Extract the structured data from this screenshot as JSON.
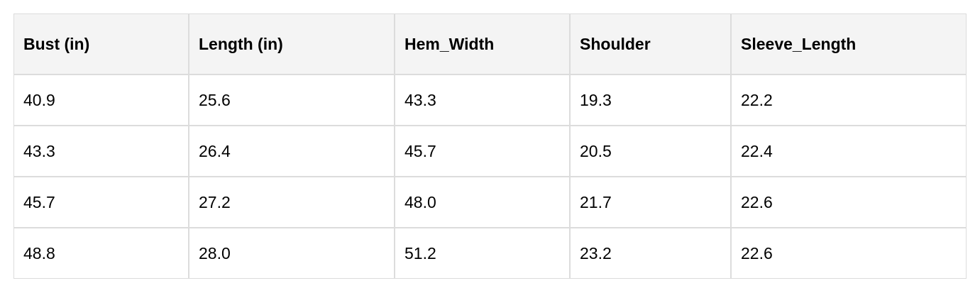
{
  "table": {
    "headers": [
      "Bust (in)",
      "Length (in)",
      "Hem_Width",
      "Shoulder",
      "Sleeve_Length"
    ],
    "rows": [
      [
        "40.9",
        "25.6",
        "43.3",
        "19.3",
        "22.2"
      ],
      [
        "43.3",
        "26.4",
        "45.7",
        "20.5",
        "22.4"
      ],
      [
        "45.7",
        "27.2",
        "48.0",
        "21.7",
        "22.6"
      ],
      [
        "48.8",
        "28.0",
        "51.2",
        "23.2",
        "22.6"
      ]
    ]
  }
}
